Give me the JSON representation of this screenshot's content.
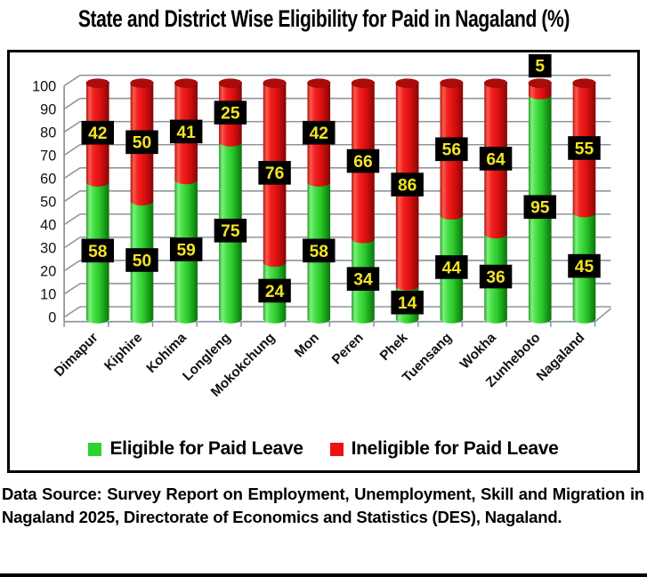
{
  "title": "State and District Wise Eligibility for Paid in Nagaland (%)",
  "chart_data": {
    "type": "bar",
    "subtype": "stacked-3d-cylinder",
    "title": "State and District Wise Eligibility for Paid in Nagaland (%)",
    "categories": [
      "Dimapur",
      "Kiphire",
      "Kohima",
      "Longleng",
      "Mokokchung",
      "Mon",
      "Peren",
      "Phek",
      "Tuensang",
      "Wokha",
      "Zunheboto",
      "Nagaland"
    ],
    "series": [
      {
        "name": "Eligible for Paid Leave",
        "color": "#2fd32f",
        "values": [
          58,
          50,
          59,
          75,
          24,
          58,
          34,
          14,
          44,
          36,
          95,
          45
        ]
      },
      {
        "name": "Ineligible for Paid Leave",
        "color": "#ee1111",
        "values": [
          42,
          50,
          41,
          25,
          76,
          42,
          66,
          86,
          56,
          64,
          5,
          55
        ]
      }
    ],
    "ylim": [
      0,
      100
    ],
    "ytick_step": 10,
    "grid": true,
    "legend_position": "bottom",
    "data_labels_shown": true,
    "data_label_bg": "#000000",
    "data_label_fg": "#f2e421",
    "gridline_color": "#8d979d"
  },
  "source_note": "Data Source: Survey Report on Employment, Unemployment, Skill and Migration in Nagaland 2025, Directorate of Economics and Statistics (DES), Nagaland."
}
